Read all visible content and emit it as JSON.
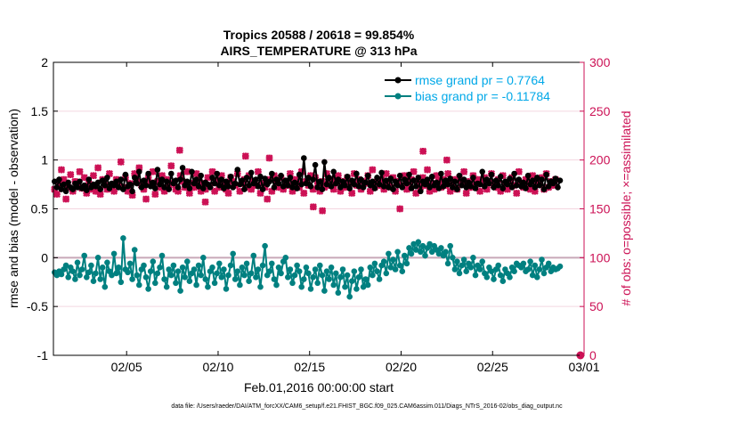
{
  "chart_data": {
    "type": "line",
    "title_line1": "Tropics 20588 / 20618 = 99.854%",
    "title_line2": "AIRS_TEMPERATURE @ 313 hPa",
    "xlabel": "Feb.01,2016 00:00:00 start",
    "ylabel_left": "rmse and bias (model - observation)",
    "ylabel_right": "# of obs: o=possible; ×=assimilated",
    "footer": "data file: /Users/raeder/DAI/ATM_forcXX/CAM6_setup/f.e21.FHIST_BGC.f09_025.CAM6assim.011/Diags_NTrS_2016-02/obs_diag_output.nc",
    "xlim": [
      0,
      29
    ],
    "x_ticks": [
      {
        "value": 4,
        "label": "02/05"
      },
      {
        "value": 9,
        "label": "02/10"
      },
      {
        "value": 14,
        "label": "02/15"
      },
      {
        "value": 19,
        "label": "02/20"
      },
      {
        "value": 24,
        "label": "02/25"
      },
      {
        "value": 29,
        "label": "03/01"
      }
    ],
    "y_left_lim": [
      -1,
      2
    ],
    "y_left_ticks": [
      {
        "value": -1,
        "label": "-1"
      },
      {
        "value": -0.5,
        "label": "-0.5"
      },
      {
        "value": 0,
        "label": "0"
      },
      {
        "value": 0.5,
        "label": "0.5"
      },
      {
        "value": 1,
        "label": "1"
      },
      {
        "value": 1.5,
        "label": "1.5"
      },
      {
        "value": 2,
        "label": "2"
      }
    ],
    "y_right_lim": [
      0,
      300
    ],
    "y_right_ticks": [
      {
        "value": 0,
        "label": "0"
      },
      {
        "value": 50,
        "label": "50"
      },
      {
        "value": 100,
        "label": "100"
      },
      {
        "value": 150,
        "label": "150"
      },
      {
        "value": 200,
        "label": "200"
      },
      {
        "value": 250,
        "label": "250"
      },
      {
        "value": 300,
        "label": "300"
      }
    ],
    "x_step": 0.125,
    "x_start": 0.0625,
    "series": [
      {
        "name": "rmse grand pr = 0.7764",
        "axis": "left",
        "color": "#000000",
        "values": [
          0.78,
          0.72,
          0.8,
          0.7,
          0.75,
          0.68,
          0.77,
          0.72,
          0.7,
          0.76,
          0.72,
          0.78,
          0.71,
          0.74,
          0.69,
          0.8,
          0.72,
          0.75,
          0.73,
          0.77,
          0.7,
          0.79,
          0.74,
          0.82,
          0.71,
          0.76,
          0.74,
          0.78,
          0.72,
          0.8,
          0.7,
          0.85,
          0.73,
          0.75,
          0.68,
          0.82,
          0.76,
          0.88,
          0.72,
          0.79,
          0.74,
          0.86,
          0.73,
          0.77,
          0.71,
          0.9,
          0.75,
          0.8,
          0.72,
          0.78,
          0.7,
          0.86,
          0.76,
          0.79,
          0.72,
          0.8,
          0.92,
          0.74,
          0.78,
          0.71,
          0.88,
          0.76,
          0.8,
          0.73,
          0.84,
          0.71,
          0.77,
          0.75,
          0.72,
          0.82,
          0.76,
          0.86,
          0.74,
          0.8,
          0.71,
          0.78,
          0.73,
          0.83,
          0.72,
          0.76,
          0.9,
          0.75,
          0.79,
          0.7,
          0.82,
          0.74,
          0.87,
          0.76,
          0.8,
          0.73,
          0.83,
          0.7,
          0.81,
          0.75,
          0.78,
          0.86,
          0.72,
          0.8,
          0.76,
          0.84,
          0.73,
          0.79,
          0.74,
          0.82,
          0.72,
          0.77,
          0.71,
          0.85,
          0.75,
          1.02,
          0.76,
          0.82,
          0.73,
          0.8,
          0.95,
          0.72,
          0.78,
          0.7,
          0.98,
          0.75,
          0.82,
          0.73,
          0.88,
          0.76,
          0.8,
          0.72,
          0.78,
          0.74,
          0.83,
          0.71,
          0.79,
          0.75,
          0.86,
          0.73,
          0.8,
          0.72,
          0.77,
          0.84,
          0.74,
          0.78,
          0.71,
          0.82,
          0.75,
          0.87,
          0.73,
          0.79,
          0.72,
          0.81,
          0.7,
          0.78,
          0.74,
          0.84,
          0.72,
          0.8,
          0.76,
          0.85,
          0.71,
          0.79,
          0.73,
          0.82,
          0.68,
          0.78,
          0.75,
          0.8,
          0.72,
          0.83,
          0.74,
          0.77,
          0.71,
          0.86,
          0.73,
          0.79,
          0.75,
          0.81,
          0.72,
          0.78,
          0.7,
          0.84,
          0.74,
          0.8,
          0.72,
          0.77,
          0.73,
          0.82,
          0.71,
          0.76,
          0.75,
          0.88,
          0.73,
          0.8,
          0.76,
          0.85,
          0.72,
          0.79,
          0.74,
          0.83,
          0.71,
          0.78,
          0.75,
          0.81,
          0.72,
          0.86,
          0.74,
          0.8,
          0.73,
          0.77,
          0.71,
          0.84,
          0.75,
          0.79,
          0.72,
          0.82,
          0.74,
          0.8,
          0.7,
          0.85,
          0.73,
          0.78,
          0.76,
          0.81,
          0.72,
          0.79
        ]
      },
      {
        "name": "bias grand pr = -0.11784",
        "axis": "left",
        "color": "#008080",
        "values": [
          -0.15,
          -0.18,
          -0.14,
          -0.17,
          -0.12,
          -0.08,
          -0.2,
          -0.1,
          -0.14,
          -0.22,
          -0.05,
          -0.18,
          -0.12,
          0.02,
          -0.2,
          -0.15,
          -0.08,
          -0.24,
          -0.16,
          0.0,
          -0.22,
          -0.1,
          -0.3,
          -0.05,
          -0.14,
          -0.18,
          0.04,
          -0.16,
          -0.1,
          -0.25,
          0.2,
          -0.12,
          -0.15,
          -0.06,
          -0.22,
          0.08,
          -0.18,
          -0.28,
          -0.12,
          -0.08,
          -0.2,
          -0.32,
          -0.14,
          -0.04,
          -0.26,
          -0.16,
          -0.1,
          0.02,
          -0.22,
          -0.3,
          -0.12,
          -0.18,
          -0.08,
          -0.26,
          -0.14,
          -0.34,
          -0.1,
          -0.2,
          -0.04,
          -0.24,
          -0.16,
          -0.12,
          -0.28,
          -0.08,
          -0.18,
          0.0,
          -0.22,
          -0.3,
          -0.14,
          -0.1,
          -0.26,
          -0.16,
          -0.06,
          -0.2,
          -0.12,
          -0.32,
          -0.18,
          -0.08,
          0.04,
          -0.22,
          -0.14,
          -0.28,
          -0.1,
          -0.18,
          -0.06,
          -0.24,
          -0.16,
          0.02,
          -0.2,
          -0.12,
          -0.3,
          -0.08,
          0.12,
          -0.18,
          -0.14,
          -0.06,
          -0.22,
          -0.28,
          -0.1,
          -0.16,
          -0.04,
          0.0,
          -0.2,
          -0.12,
          -0.26,
          -0.18,
          -0.08,
          -0.14,
          -0.3,
          -0.22,
          -0.1,
          -0.16,
          -0.32,
          -0.2,
          -0.12,
          -0.26,
          -0.08,
          -0.18,
          -0.34,
          -0.14,
          -0.22,
          -0.1,
          -0.28,
          -0.16,
          -0.36,
          -0.2,
          -0.12,
          -0.3,
          -0.18,
          -0.4,
          -0.24,
          -0.14,
          -0.32,
          -0.2,
          -0.12,
          -0.3,
          -0.22,
          -0.28,
          -0.1,
          -0.18,
          -0.06,
          -0.14,
          -0.22,
          -0.08,
          -0.04,
          -0.16,
          0.04,
          -0.1,
          -0.02,
          -0.12,
          0.06,
          -0.08,
          -0.14,
          0.02,
          -0.06,
          0.1,
          0.04,
          0.14,
          0.08,
          0.16,
          0.06,
          0.12,
          0.02,
          0.1,
          0.14,
          0.06,
          0.12,
          0.08,
          0.04,
          0.1,
          0.02,
          0.06,
          -0.06,
          0.12,
          0.0,
          -0.12,
          -0.04,
          -0.16,
          -0.08,
          -0.02,
          -0.14,
          -0.06,
          -0.1,
          0.0,
          -0.18,
          -0.08,
          -0.12,
          -0.04,
          -0.16,
          -0.2,
          -0.1,
          -0.14,
          -0.22,
          -0.12,
          -0.08,
          -0.18,
          -0.24,
          -0.12,
          -0.16,
          -0.2,
          -0.1,
          -0.14,
          -0.06,
          -0.08,
          -0.1,
          -0.06,
          -0.14,
          -0.12,
          -0.04,
          -0.18,
          -0.08,
          -0.2,
          -0.12,
          -0.02,
          -0.16,
          -0.1,
          -0.06,
          -0.14,
          -0.1,
          -0.12,
          -0.11,
          -0.09
        ]
      }
    ],
    "obs_possible": {
      "name": "# obs possible",
      "axis": "right",
      "color": "#cc1155",
      "values": [
        0
      ]
    },
    "obs_assimilated": {
      "name": "# obs assimilated",
      "axis": "right",
      "color": "#cc1155",
      "values": [
        170,
        165,
        175,
        190,
        180,
        160,
        172,
        185,
        168,
        178,
        174,
        188,
        171,
        182,
        166,
        176,
        170,
        184,
        168,
        192,
        165,
        180,
        174,
        170,
        186,
        172,
        168,
        180,
        175,
        198,
        172,
        182,
        168,
        176,
        164,
        186,
        178,
        192,
        174,
        170,
        160,
        182,
        176,
        188,
        165,
        178,
        172,
        184,
        168,
        180,
        174,
        194,
        176,
        170,
        168,
        184,
        178,
        172,
        188,
        166,
        176,
        172,
        186,
        180,
        168,
        176,
        170,
        182,
        174,
        188,
        168,
        178,
        172,
        184,
        176,
        170,
        166,
        182,
        178,
        174,
        186,
        168,
        176,
        180,
        172,
        184,
        170,
        178,
        174,
        188,
        166,
        176,
        172,
        160,
        180,
        168,
        184,
        176,
        172,
        182,
        170,
        178,
        174,
        186,
        168,
        180,
        176,
        172,
        188,
        166,
        178,
        174,
        184,
        170,
        182,
        176,
        168,
        178,
        172,
        186,
        174,
        180,
        170,
        176,
        184,
        168,
        178,
        172,
        182,
        176,
        166,
        186,
        174,
        180,
        170,
        178,
        176,
        184,
        168,
        190,
        172,
        178,
        174,
        180,
        170,
        186,
        176,
        172,
        182,
        168,
        178,
        150,
        174,
        184,
        170,
        176,
        180,
        188,
        166,
        178,
        172,
        182,
        174,
        190,
        168,
        176,
        170,
        184,
        178,
        172,
        180,
        174,
        186,
        168,
        176,
        180,
        170,
        182,
        176,
        188,
        166,
        178,
        172,
        184,
        174,
        180,
        168,
        176,
        182,
        170,
        178,
        186,
        174,
        172,
        180,
        168,
        184,
        176,
        170,
        178,
        182,
        174,
        166,
        188,
        176,
        172,
        180,
        174,
        170,
        184,
        168,
        178,
        176,
        182,
        170,
        186,
        172,
        178,
        174,
        180
      ],
      "outliers": [
        {
          "x": 6.9,
          "y": 210
        },
        {
          "x": 8.3,
          "y": 157
        },
        {
          "x": 14.7,
          "y": 148
        },
        {
          "x": 14.2,
          "y": 152
        },
        {
          "x": 10.5,
          "y": 204
        },
        {
          "x": 20.2,
          "y": 209
        },
        {
          "x": 21.5,
          "y": 200
        },
        {
          "x": 11.8,
          "y": 202
        }
      ],
      "special": [
        {
          "x": 28.8,
          "y": 0
        }
      ]
    }
  }
}
